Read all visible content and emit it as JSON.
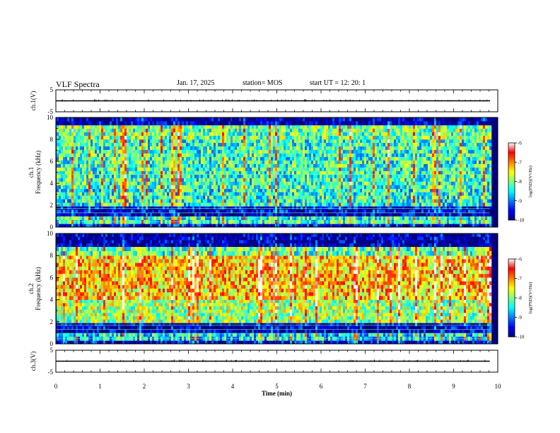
{
  "header": {
    "title": "VLF Spectra",
    "date": "Jan. 17, 2025",
    "station": "station= MOS",
    "start": "start  UT =   12: 20: 1"
  },
  "colors": {
    "background": "#ffffff",
    "axes": "#000000",
    "spectrogram_floor": "#000080",
    "colormap": [
      "#00007f",
      "#0000ff",
      "#0080ff",
      "#00ffff",
      "#80ff80",
      "#ffff00",
      "#ff8000",
      "#ff0000",
      "#ffffff"
    ]
  },
  "chart_data": [
    {
      "type": "line",
      "name": "ch1-waveform",
      "ylabel": "ch.1(V)",
      "ylim": [
        -5,
        5
      ],
      "yticks": [
        "5",
        "-5"
      ],
      "x": [
        0,
        9.82
      ],
      "y": [
        0,
        0
      ]
    },
    {
      "type": "heatmap",
      "name": "ch1-spectrogram",
      "ylabel_line1": "ch.1",
      "ylabel_line2": "Frequency (kHz)",
      "ylim": [
        0,
        10
      ],
      "yticks": [
        "0",
        "2",
        "4",
        "6",
        "8",
        "10"
      ],
      "xlim": [
        0,
        10
      ],
      "data_xmax": 9.82,
      "colorbar": {
        "label": "log(PSD)(V²/Hz)",
        "range": [
          -10,
          -6
        ],
        "ticks": [
          "-6",
          "-7",
          "-8",
          "-9",
          "-10"
        ]
      },
      "freq_bands_khz": [
        0.5,
        0.9,
        1.3,
        1.7,
        4.8
      ],
      "profile": [
        {
          "f": [
            0,
            0.3
          ],
          "level": -9.6
        },
        {
          "f": [
            0.3,
            1.0
          ],
          "level": -8.4
        },
        {
          "f": [
            1.0,
            1.3
          ],
          "level": -9.8
        },
        {
          "f": [
            1.3,
            1.9
          ],
          "level": -9.6
        },
        {
          "f": [
            1.9,
            3.5
          ],
          "level": -8.4
        },
        {
          "f": [
            3.5,
            8.0
          ],
          "level": -8.3
        },
        {
          "f": [
            8.0,
            9.3
          ],
          "level": -8.1
        },
        {
          "f": [
            9.3,
            10
          ],
          "level": -9.9
        }
      ]
    },
    {
      "type": "heatmap",
      "name": "ch2-spectrogram",
      "ylabel_line1": "ch.2",
      "ylabel_line2": "Frequency (kHz)",
      "ylim": [
        0,
        10
      ],
      "yticks": [
        "0",
        "2",
        "4",
        "6",
        "8",
        "10"
      ],
      "xlim": [
        0,
        10
      ],
      "data_xmax": 9.82,
      "colorbar": {
        "label": "log(PSD)(V²/Hz)",
        "range": [
          -10,
          -6
        ],
        "ticks": [
          "-6",
          "-7",
          "-8",
          "-9",
          "-10"
        ]
      },
      "freq_bands_khz": [
        0.5,
        0.9,
        1.3,
        1.7
      ],
      "profile": [
        {
          "f": [
            0,
            0.3
          ],
          "level": -9.6
        },
        {
          "f": [
            0.3,
            1.0
          ],
          "level": -8.6
        },
        {
          "f": [
            1.0,
            1.9
          ],
          "level": -9.8
        },
        {
          "f": [
            1.9,
            4.0
          ],
          "level": -7.9
        },
        {
          "f": [
            4.0,
            8.0
          ],
          "level": -7.3
        },
        {
          "f": [
            8.0,
            8.8
          ],
          "level": -8.2
        },
        {
          "f": [
            8.8,
            10
          ],
          "level": -9.9
        }
      ]
    },
    {
      "type": "line",
      "name": "ch3-waveform",
      "ylabel": "ch.3(V)",
      "ylim": [
        -5,
        5
      ],
      "yticks": [
        "5",
        "-5"
      ],
      "x": [
        0,
        9.82
      ],
      "y": [
        0,
        0
      ]
    }
  ],
  "xaxis": {
    "label": "Time (min)",
    "range": [
      0,
      10
    ],
    "ticks": [
      "0",
      "1",
      "2",
      "3",
      "4",
      "5",
      "6",
      "7",
      "8",
      "9",
      "10"
    ]
  }
}
